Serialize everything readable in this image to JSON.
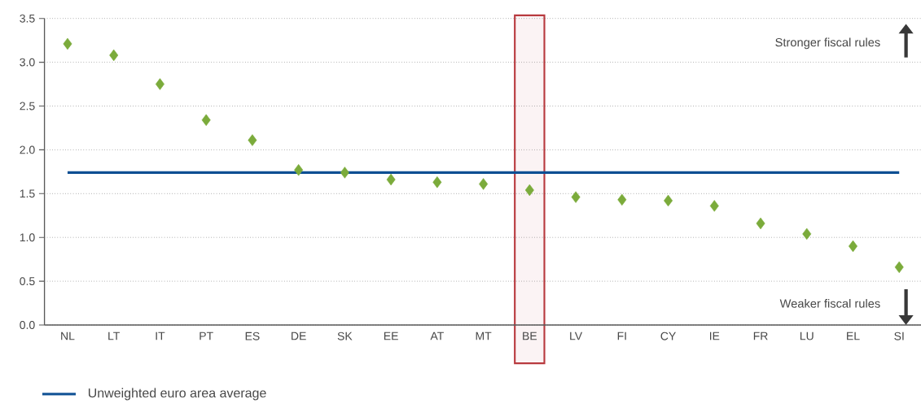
{
  "chart_data": {
    "type": "scatter",
    "categories": [
      "NL",
      "LT",
      "IT",
      "PT",
      "ES",
      "DE",
      "SK",
      "EE",
      "AT",
      "MT",
      "BE",
      "LV",
      "FI",
      "CY",
      "IE",
      "FR",
      "LU",
      "EL",
      "SI"
    ],
    "values": [
      3.21,
      3.08,
      2.75,
      2.34,
      2.11,
      1.77,
      1.74,
      1.66,
      1.63,
      1.61,
      1.54,
      1.46,
      1.43,
      1.42,
      1.36,
      1.16,
      1.04,
      0.9,
      0.66
    ],
    "color": "#7bab3b",
    "marker": "diamond",
    "ylim": [
      0,
      3.5
    ],
    "yticks": [
      {
        "value": 0,
        "label": "0.0"
      },
      {
        "value": 0.5,
        "label": "0.5"
      },
      {
        "value": 1,
        "label": "1.0"
      },
      {
        "value": 1.5,
        "label": "1.5"
      },
      {
        "value": 2,
        "label": "2.0"
      },
      {
        "value": 2.5,
        "label": "2.5"
      },
      {
        "value": 3,
        "label": "3.0"
      },
      {
        "value": 3.5,
        "label": "3.5"
      }
    ],
    "grid": "y",
    "ref_lines": [
      {
        "axis": "y",
        "value": 1.74,
        "label": "Unweighted euro area average",
        "color": "#0d4f93"
      }
    ],
    "bands": [
      {
        "axis": "x",
        "from": "BE",
        "to": "BE",
        "color": "#b83a3f"
      }
    ],
    "annotations": [
      "Stronger fiscal rules",
      "Weaker fiscal rules"
    ],
    "legend": "bottom left"
  }
}
